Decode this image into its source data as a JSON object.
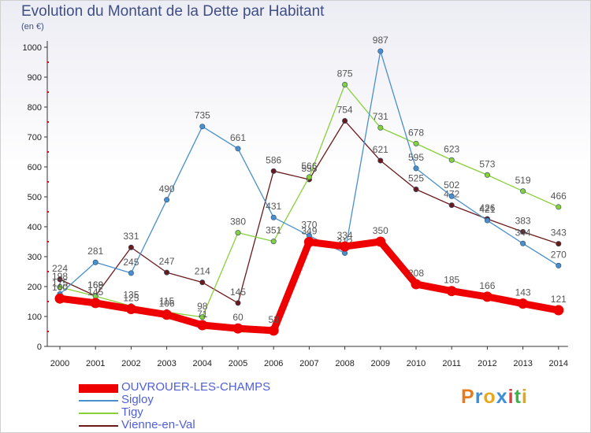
{
  "header": {
    "title": "Evolution du Montant de la Dette par Habitant",
    "unit": "(en €)"
  },
  "logo": {
    "text": "Proxiti",
    "colors": [
      "#e87b1e",
      "#3b8fd6",
      "#e8a81e",
      "#3b8fd6",
      "#d64545",
      "#3bb54a",
      "#d6a53b"
    ]
  },
  "chart_data": {
    "type": "line",
    "title": "Evolution du Montant de la Dette par Habitant",
    "ylabel": "(en €)",
    "xlabel": "",
    "x": [
      2000,
      2001,
      2002,
      2003,
      2004,
      2005,
      2006,
      2007,
      2008,
      2009,
      2010,
      2011,
      2012,
      2013,
      2014
    ],
    "ylim": [
      0,
      1000
    ],
    "yticks": [
      0,
      100,
      200,
      300,
      400,
      500,
      600,
      700,
      800,
      900,
      1000
    ],
    "grid": false,
    "legend": "bottom-left",
    "series": [
      {
        "name": "Vienne-en-Val",
        "color": "#6b1a1a",
        "values": [
          224,
          169,
          331,
          247,
          214,
          145,
          586,
          558,
          754,
          621,
          525,
          472,
          426,
          383,
          343
        ]
      },
      {
        "name": "Tigy",
        "color": "#88d03a",
        "values": [
          198,
          168,
          135,
          115,
          98,
          380,
          351,
          566,
          875,
          731,
          678,
          623,
          573,
          519,
          466
        ]
      },
      {
        "name": "Sigloy",
        "color": "#4a8fcc",
        "values": [
          175,
          281,
          245,
          490,
          735,
          661,
          431,
          370,
          312,
          987,
          595,
          502,
          421,
          344,
          270
        ]
      },
      {
        "name": "OUVROUER-LES-CHAMPS",
        "color": "#ee0000",
        "values": [
          160,
          145,
          125,
          106,
          71,
          60,
          53,
          349,
          334,
          350,
          208,
          185,
          166,
          143,
          121
        ]
      }
    ]
  },
  "legend": {
    "items": [
      {
        "name": "OUVROUER-LES-CHAMPS",
        "color": "#ee0000",
        "thickness": 11
      },
      {
        "name": "Sigloy",
        "color": "#4a8fcc",
        "thickness": 2
      },
      {
        "name": "Tigy",
        "color": "#88d03a",
        "thickness": 2
      },
      {
        "name": "Vienne-en-Val",
        "color": "#6b1a1a",
        "thickness": 2
      }
    ]
  }
}
